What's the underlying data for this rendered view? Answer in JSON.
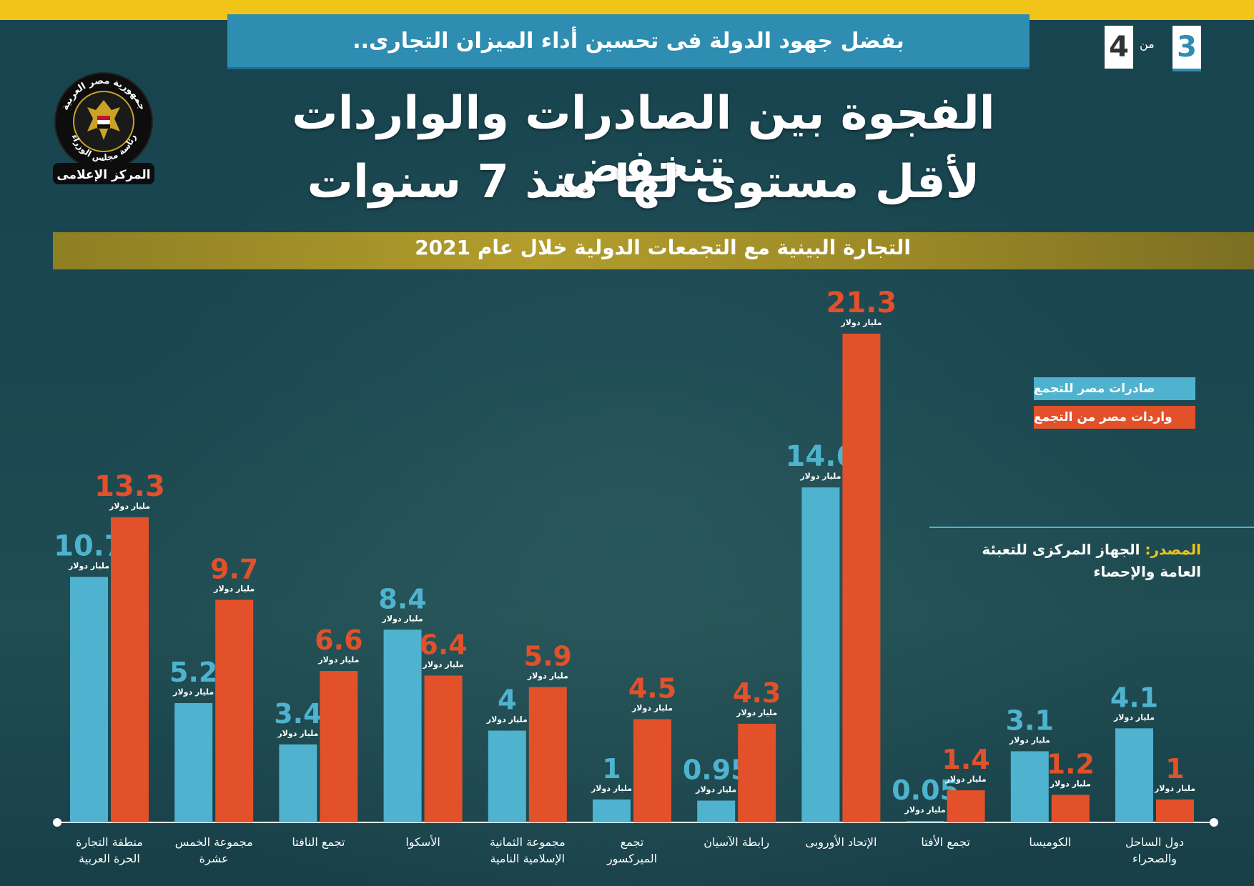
{
  "banner": {
    "text": "بفضل جهود الدولة فى تحسين أداء الميزان التجارى.."
  },
  "pagination": {
    "current": "3",
    "of_label": "من",
    "total": "4"
  },
  "logo": {
    "top_text": "جمهورية مصر العربية",
    "middle_text": "رئاسة مجلس الوزراء",
    "bottom_text": "المركز الإعلامى"
  },
  "title": {
    "line1": "الفجوة بين الصادرات والواردات تنخفض",
    "line2": "لأقل مستوى لها منذ 7 سنوات"
  },
  "subtitle": "التجارة البينية مع التجمعات الدولية خلال عام 2021",
  "legend": {
    "exports": "صادرات مصر للتجمع",
    "imports": "واردات مصر من التجمع"
  },
  "source": {
    "label": "المصدر:",
    "text_line1": "الجهاز المركزى للتعبئة",
    "text_line2": "العامة والإحصاء"
  },
  "colors": {
    "exports": "#4fb3cf",
    "imports": "#e2512a",
    "accent": "#f0c419"
  },
  "chart_data": {
    "type": "bar",
    "title": "التجارة البينية مع التجمعات الدولية خلال عام 2021",
    "unit_label": "مليار دولار",
    "categories": [
      [
        "منطقة التجارة",
        "الحرة العربية"
      ],
      [
        "مجموعة الخمس",
        "عشرة"
      ],
      [
        "تجمع النافتا"
      ],
      [
        "الأسكوا"
      ],
      [
        "مجموعة الثمانية",
        "الإسلامية النامية"
      ],
      [
        "تجمع",
        "الميركسور"
      ],
      [
        "رابطة الآسيان"
      ],
      [
        "الإتحاد الأوروبى"
      ],
      [
        "تجمع الأفتا"
      ],
      [
        "الكوميسا"
      ],
      [
        "دول الساحل",
        "والصحراء"
      ]
    ],
    "series": [
      {
        "name": "صادرات مصر للتجمع",
        "values": [
          10.7,
          5.2,
          3.4,
          8.4,
          4,
          1,
          0.95,
          14.6,
          0.05,
          3.1,
          4.1
        ],
        "labels": [
          "10.7",
          "5.2",
          "3.4",
          "8.4",
          "4",
          "1",
          "0.95",
          "14.6",
          "0.05",
          "3.1",
          "4.1"
        ]
      },
      {
        "name": "واردات مصر من التجمع",
        "values": [
          13.3,
          9.7,
          6.6,
          6.4,
          5.9,
          4.5,
          4.3,
          21.3,
          1.4,
          1.2,
          1
        ],
        "labels": [
          "13.3",
          "9.7",
          "6.6",
          "6.4",
          "5.9",
          "4.5",
          "4.3",
          "21.3",
          "1.4",
          "1.2",
          "1"
        ]
      }
    ],
    "ylim": [
      0,
      21.3
    ],
    "grid": false,
    "legend_position": "right"
  }
}
